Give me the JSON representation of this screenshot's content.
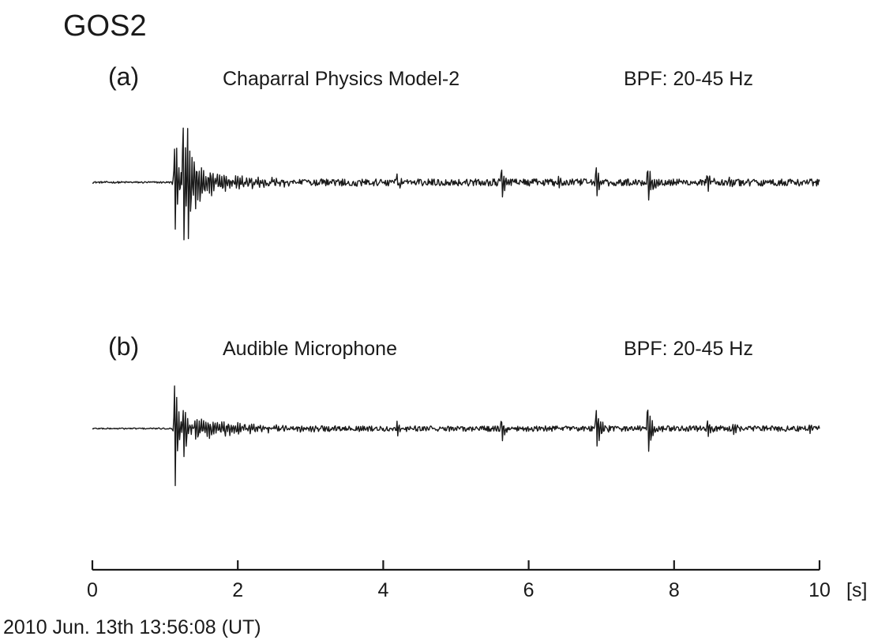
{
  "figure": {
    "station_title": "GOS2",
    "timestamp": "2010 Jun. 13th 13:56:08 (UT)"
  },
  "chart_data": {
    "type": "line",
    "x_unit_label": "[s]",
    "xlim": [
      0,
      10
    ],
    "x_ticks": [
      "0",
      "2",
      "4",
      "6",
      "8",
      "10"
    ],
    "grid": false,
    "sample_interval_s": 0.01,
    "panels": [
      {
        "id": "a",
        "label": "(a)",
        "sensor": "Chaparral Physics Model-2",
        "filter": "BPF: 20-45 Hz",
        "background_noise": 0.03,
        "events": [
          {
            "t": 1.12,
            "amp": 1.0,
            "decay": 0.04
          },
          {
            "t": 1.24,
            "amp": 0.95,
            "decay": 0.05
          },
          {
            "t": 1.3,
            "amp": 0.45,
            "decay": 0.08
          },
          {
            "t": 1.4,
            "amp": 0.15,
            "decay": 0.5
          },
          {
            "t": 4.18,
            "amp": 0.12,
            "decay": 0.03
          },
          {
            "t": 5.62,
            "amp": 0.2,
            "decay": 0.04
          },
          {
            "t": 6.4,
            "amp": 0.09,
            "decay": 0.04
          },
          {
            "t": 6.92,
            "amp": 0.23,
            "decay": 0.04
          },
          {
            "t": 7.63,
            "amp": 0.3,
            "decay": 0.05
          },
          {
            "t": 8.45,
            "amp": 0.1,
            "decay": 0.06
          },
          {
            "t": 8.75,
            "amp": 0.07,
            "decay": 0.05
          }
        ]
      },
      {
        "id": "b",
        "label": "(b)",
        "sensor": "Audible Microphone",
        "filter": "BPF: 20-45 Hz",
        "background_noise": 0.025,
        "events": [
          {
            "t": 1.12,
            "amp": 1.0,
            "decay": 0.04
          },
          {
            "t": 1.24,
            "amp": 0.5,
            "decay": 0.05
          },
          {
            "t": 1.4,
            "amp": 0.12,
            "decay": 0.6
          },
          {
            "t": 4.18,
            "amp": 0.1,
            "decay": 0.05
          },
          {
            "t": 5.62,
            "amp": 0.16,
            "decay": 0.04
          },
          {
            "t": 6.92,
            "amp": 0.3,
            "decay": 0.05
          },
          {
            "t": 7.63,
            "amp": 0.38,
            "decay": 0.05
          },
          {
            "t": 8.45,
            "amp": 0.1,
            "decay": 0.06
          },
          {
            "t": 8.8,
            "amp": 0.08,
            "decay": 0.05
          },
          {
            "t": 9.85,
            "amp": 0.05,
            "decay": 0.05
          }
        ]
      }
    ]
  }
}
